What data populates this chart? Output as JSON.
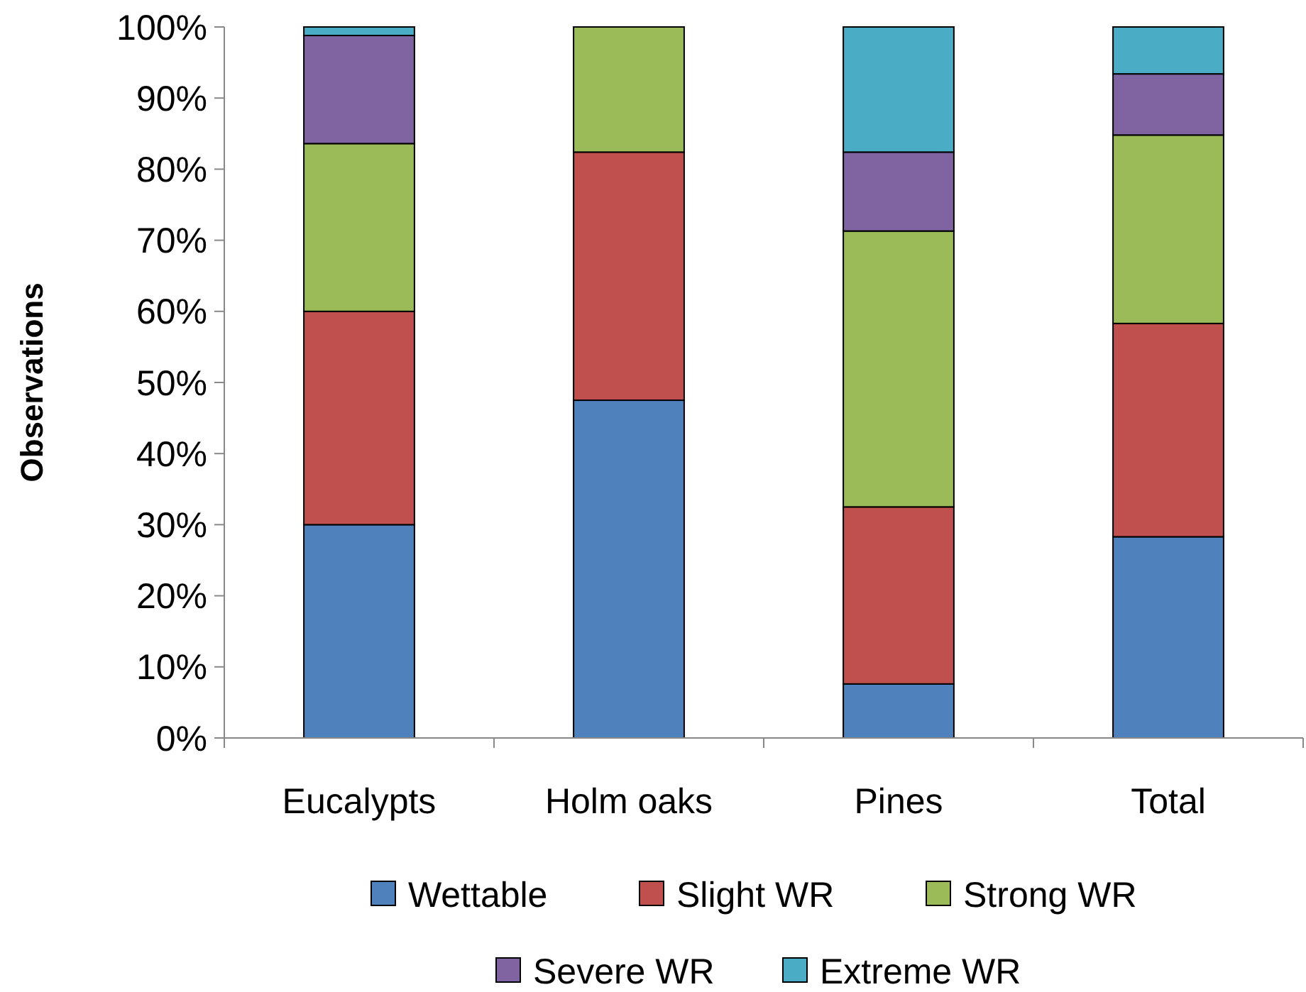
{
  "chart_data": {
    "type": "bar",
    "stacked": true,
    "ylabel": "Observations",
    "categories": [
      "Eucalypts",
      "Holm oaks",
      "Pines",
      "Total"
    ],
    "series": [
      {
        "name": "Wettable",
        "color": "#4f81bd",
        "values": [
          30,
          47.5,
          7.6,
          28.3
        ]
      },
      {
        "name": "Slight WR",
        "color": "#c0504d",
        "values": [
          30,
          34.9,
          24.9,
          30
        ]
      },
      {
        "name": "Strong WR",
        "color": "#9bbb59",
        "values": [
          23.6,
          17.6,
          38.8,
          26.5
        ]
      },
      {
        "name": "Severe WR",
        "color": "#8064a2",
        "values": [
          15.2,
          0,
          11.1,
          8.6
        ]
      },
      {
        "name": "Extreme WR",
        "color": "#4bacc6",
        "values": [
          1.2,
          0,
          17.6,
          6.6
        ]
      }
    ],
    "ylim": [
      0,
      100
    ],
    "yticks": [
      {
        "value": 0,
        "label": "0%"
      },
      {
        "value": 10,
        "label": "10%"
      },
      {
        "value": 20,
        "label": "20%"
      },
      {
        "value": 30,
        "label": "30%"
      },
      {
        "value": 40,
        "label": "40%"
      },
      {
        "value": 50,
        "label": "50%"
      },
      {
        "value": 60,
        "label": "60%"
      },
      {
        "value": 70,
        "label": "70%"
      },
      {
        "value": 80,
        "label": "80%"
      },
      {
        "value": 90,
        "label": "90%"
      },
      {
        "value": 100,
        "label": "100%"
      }
    ],
    "grid": false,
    "legend": "bottom"
  }
}
